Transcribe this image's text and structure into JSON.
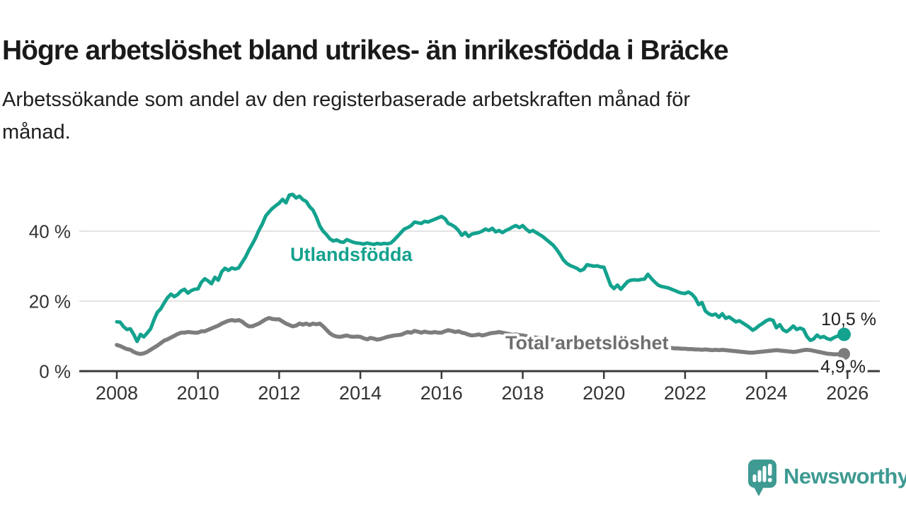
{
  "header": {
    "title": "Högre arbetslöshet bland utrikes- än inrikesfödda i Bräcke",
    "subtitle_lines": [
      "Arbetssökande som andel av den registerbaserade arbetskraften månad för",
      "månad."
    ]
  },
  "chart_data": {
    "type": "line",
    "x_start": 2008.0,
    "points_per_year": 12,
    "x_ticks": [
      2008,
      2010,
      2012,
      2014,
      2016,
      2018,
      2020,
      2022,
      2024,
      2026
    ],
    "y_ticks": [
      0,
      20,
      40
    ],
    "y_unit": " %",
    "ylim": [
      0,
      52
    ],
    "grid": "horizontal",
    "legend_position": "inline-labels",
    "series": [
      {
        "name": "Utlandsfödda",
        "color": "#13A28E",
        "end_label": "10,5 %",
        "end_value": 10.5,
        "values": [
          14.1,
          14.0,
          12.7,
          11.9,
          12.1,
          10.5,
          8.5,
          10.5,
          9.8,
          10.9,
          12.1,
          14.7,
          16.8,
          17.8,
          19.5,
          21.0,
          22.0,
          21.3,
          21.9,
          22.9,
          23.4,
          22.3,
          23.0,
          23.4,
          23.5,
          25.4,
          26.4,
          25.8,
          25.0,
          26.8,
          26.0,
          28.4,
          29.4,
          28.8,
          29.5,
          29.2,
          29.5,
          31.0,
          32.5,
          34.5,
          36.2,
          38.0,
          40.2,
          42.0,
          44.3,
          45.5,
          46.5,
          47.3,
          48.0,
          49.1,
          48.1,
          50.3,
          50.5,
          49.5,
          50.0,
          49.0,
          48.5,
          47.0,
          46.0,
          44.0,
          41.5,
          40.0,
          39.0,
          37.8,
          37.2,
          37.5,
          37.0,
          36.8,
          37.6,
          37.2,
          36.8,
          36.6,
          36.5,
          36.3,
          36.6,
          36.4,
          36.2,
          36.5,
          36.3,
          36.5,
          36.4,
          36.6,
          37.5,
          38.5,
          39.6,
          40.6,
          41.0,
          41.6,
          42.6,
          42.4,
          42.2,
          42.8,
          42.6,
          43.0,
          43.4,
          43.8,
          44.2,
          43.6,
          42.2,
          41.8,
          41.2,
          40.2,
          38.8,
          39.6,
          38.5,
          39.2,
          39.4,
          39.6,
          40.0,
          40.6,
          40.2,
          40.8,
          39.8,
          40.2,
          39.6,
          40.2,
          40.6,
          41.2,
          41.6,
          41.0,
          41.6,
          40.6,
          39.8,
          40.2,
          39.6,
          39.0,
          38.4,
          37.6,
          36.8,
          36.0,
          34.8,
          33.4,
          31.8,
          30.8,
          30.2,
          29.8,
          29.4,
          28.7,
          29.1,
          30.4,
          30.2,
          30.0,
          30.1,
          29.8,
          29.7,
          27.1,
          24.5,
          23.6,
          24.6,
          23.4,
          24.5,
          25.6,
          26.0,
          26.1,
          26.0,
          26.2,
          26.3,
          27.7,
          26.5,
          25.5,
          24.6,
          24.2,
          24.0,
          23.8,
          23.4,
          23.0,
          22.6,
          22.3,
          22.2,
          22.6,
          22.0,
          20.9,
          19.0,
          19.6,
          17.2,
          16.4,
          16.0,
          16.3,
          15.4,
          16.4,
          15.1,
          15.5,
          14.8,
          14.1,
          14.4,
          13.8,
          13.2,
          12.5,
          11.7,
          12.3,
          13.1,
          13.7,
          14.4,
          14.8,
          14.5,
          12.4,
          13.3,
          11.8,
          11.3,
          12.0,
          12.9,
          11.9,
          12.3,
          11.9,
          9.9,
          8.8,
          9.2,
          10.3,
          9.6,
          9.9,
          9.3,
          9.0,
          9.6,
          10.0,
          10.2,
          10.5
        ]
      },
      {
        "name": "Total arbetslöshet",
        "color": "#7D7D7D",
        "end_label": "4,9 %",
        "end_value": 4.9,
        "values": [
          7.5,
          7.2,
          6.7,
          6.3,
          6.1,
          5.5,
          5.1,
          4.9,
          5.1,
          5.5,
          6.1,
          6.7,
          7.3,
          8.0,
          8.7,
          9.1,
          9.6,
          10.1,
          10.6,
          11.0,
          11.0,
          11.2,
          11.1,
          11.0,
          11.0,
          11.4,
          11.4,
          11.8,
          12.2,
          12.6,
          13.0,
          13.6,
          14.0,
          14.4,
          14.6,
          14.4,
          14.6,
          14.2,
          13.4,
          12.8,
          12.8,
          13.2,
          13.6,
          14.2,
          14.8,
          15.2,
          14.9,
          14.8,
          14.8,
          14.2,
          13.6,
          13.2,
          12.8,
          13.0,
          13.6,
          13.3,
          13.6,
          13.2,
          13.6,
          13.4,
          13.6,
          12.8,
          11.8,
          10.8,
          10.2,
          9.9,
          9.8,
          10.0,
          10.2,
          9.9,
          9.8,
          9.9,
          9.8,
          9.4,
          9.1,
          9.5,
          9.3,
          9.0,
          9.2,
          9.5,
          9.8,
          10.0,
          10.2,
          10.3,
          10.4,
          10.8,
          11.2,
          11.0,
          11.5,
          11.3,
          11.0,
          11.3,
          11.1,
          11.0,
          11.2,
          11.0,
          11.0,
          11.4,
          11.7,
          11.5,
          11.2,
          11.4,
          11.0,
          10.8,
          10.4,
          10.2,
          10.3,
          10.5,
          10.2,
          10.4,
          10.7,
          10.9,
          11.0,
          11.2,
          11.0,
          10.8,
          10.6,
          10.4,
          10.5,
          10.3,
          10.2,
          10.0,
          9.9,
          9.7,
          9.6,
          9.4,
          9.3,
          9.2,
          9.1,
          9.0,
          8.9,
          8.8,
          8.7,
          8.6,
          8.5,
          8.4,
          8.3,
          8.2,
          8.2,
          8.1,
          8.0,
          8.0,
          7.9,
          7.9,
          7.9,
          8.1,
          8.4,
          8.6,
          8.5,
          8.4,
          8.2,
          8.0,
          7.8,
          7.6,
          7.5,
          7.4,
          7.3,
          7.2,
          7.1,
          7.0,
          6.9,
          6.8,
          6.8,
          6.7,
          6.6,
          6.5,
          6.5,
          6.4,
          6.4,
          6.3,
          6.3,
          6.2,
          6.2,
          6.1,
          6.2,
          6.1,
          6.0,
          6.1,
          6.0,
          6.1,
          6.0,
          5.9,
          5.8,
          5.7,
          5.6,
          5.5,
          5.4,
          5.3,
          5.3,
          5.4,
          5.5,
          5.6,
          5.7,
          5.8,
          5.9,
          6.0,
          5.9,
          5.8,
          5.7,
          5.6,
          5.5,
          5.6,
          5.8,
          6.0,
          6.1,
          6.0,
          5.8,
          5.6,
          5.4,
          5.2,
          5.0,
          4.9,
          4.8,
          4.8,
          4.85,
          4.9
        ]
      }
    ]
  },
  "footer": {
    "brand": "Newsworthy"
  },
  "colors": {
    "teal": "#13A28E",
    "gray": "#7D7D7D",
    "label_gray": "#6F6F6F",
    "logo_teal": "#3E9A92",
    "grid": "#DBDBDB",
    "axis": "#3A3A3A",
    "text": "#1A1A1A"
  }
}
